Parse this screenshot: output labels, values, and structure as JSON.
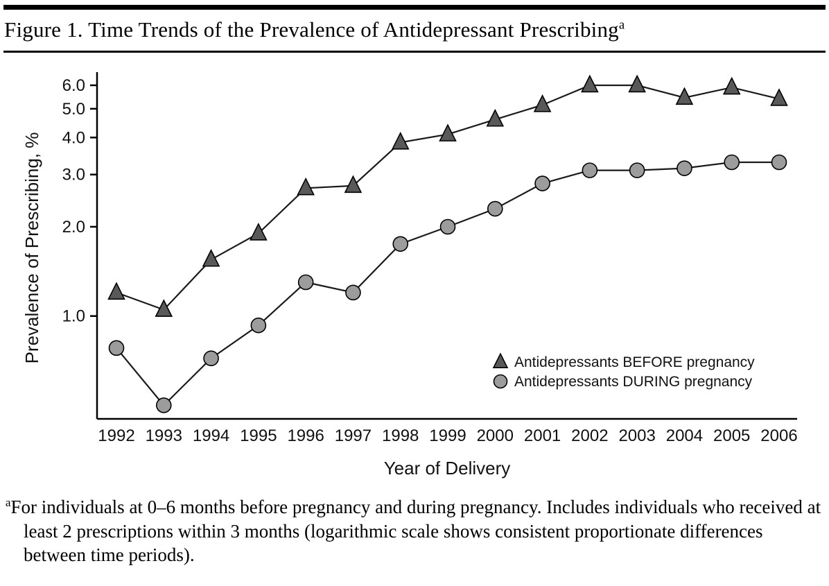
{
  "header": {
    "title": "Figure 1. Time Trends of the Prevalence of Antidepressant Prescribing",
    "title_superscript": "a"
  },
  "footnote": {
    "superscript": "a",
    "text": "For individuals at 0–6 months before pregnancy and during pregnancy. Includes individuals who received at least 2 prescriptions within 3 months (logarithmic scale shows consistent proportionate differences between time periods)."
  },
  "chart_data": {
    "type": "line",
    "title": "Figure 1. Time Trends of the Prevalence of Antidepressant Prescribing",
    "xlabel": "Year of Delivery",
    "ylabel": "Prevalence of Prescribing, %",
    "y_scale": "log",
    "ylim": [
      0.45,
      6.4
    ],
    "yticks": [
      1.0,
      2.0,
      3.0,
      4.0,
      5.0,
      6.0
    ],
    "ytick_labels": [
      "1.0",
      "2.0",
      "3.0",
      "4.0",
      "5.0",
      "6.0"
    ],
    "grid": false,
    "legend_position": "inside lower right",
    "categories": [
      1992,
      1993,
      1994,
      1995,
      1996,
      1997,
      1998,
      1999,
      2000,
      2001,
      2002,
      2003,
      2004,
      2005,
      2006
    ],
    "series": [
      {
        "name": "Antidepressants BEFORE pregnancy",
        "marker": "triangle",
        "marker_color": "#595959",
        "values": [
          1.2,
          1.05,
          1.55,
          1.9,
          2.7,
          2.75,
          3.85,
          4.1,
          4.6,
          5.15,
          6.0,
          6.0,
          5.45,
          5.9,
          5.4
        ]
      },
      {
        "name": "Antidepressants DURING pregnancy",
        "marker": "circle",
        "marker_color": "#9c9c9c",
        "values": [
          0.78,
          0.5,
          0.72,
          0.93,
          1.3,
          1.2,
          1.75,
          2.0,
          2.3,
          2.8,
          3.1,
          3.1,
          3.15,
          3.3,
          3.3
        ]
      }
    ],
    "line_color": "#1a1a1a",
    "axis_color": "#000000"
  }
}
